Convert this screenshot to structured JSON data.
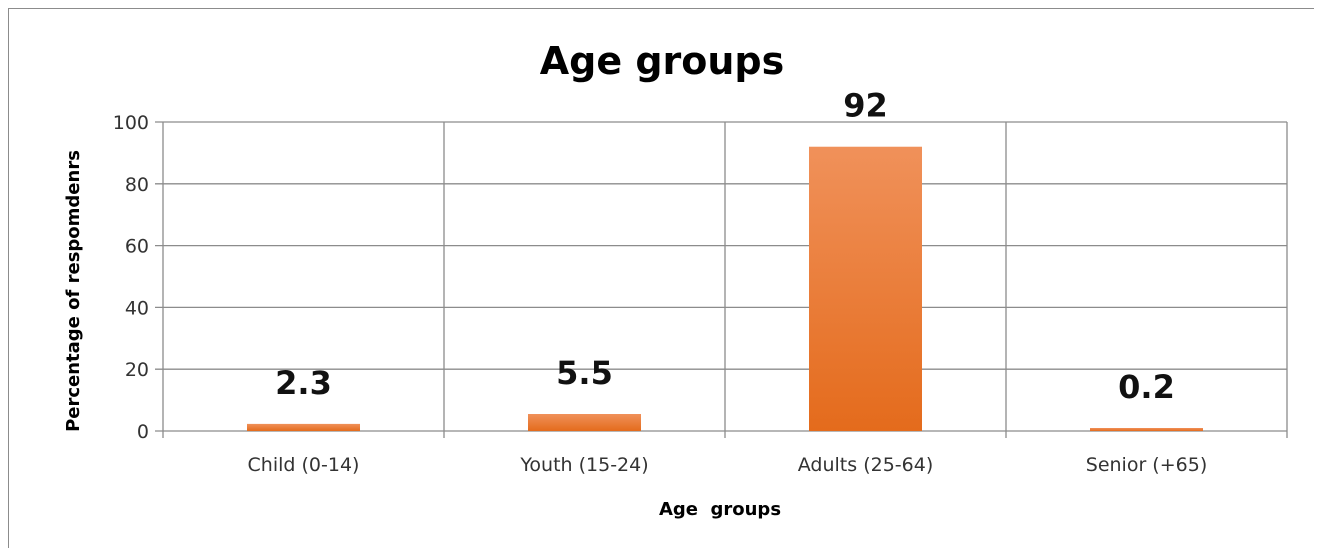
{
  "chart_data": {
    "type": "bar",
    "title": "Age groups",
    "xlabel": "Age  groups",
    "ylabel": "Percentage of respomdenrs",
    "categories": [
      "Child (0-14)",
      "Youth (15-24)",
      "Adults (25-64)",
      "Senior (+65)"
    ],
    "values": [
      2.3,
      5.5,
      92,
      0.2
    ],
    "data_labels": [
      "2.3",
      "5.5",
      "92",
      "0.2"
    ],
    "yticks": [
      "0",
      "20",
      "40",
      "60",
      "80",
      "100"
    ],
    "ylim": [
      0,
      100
    ],
    "grid": true,
    "legend": "none",
    "bar_color_top": "#f0915a",
    "bar_color_bottom": "#e46b1c"
  }
}
